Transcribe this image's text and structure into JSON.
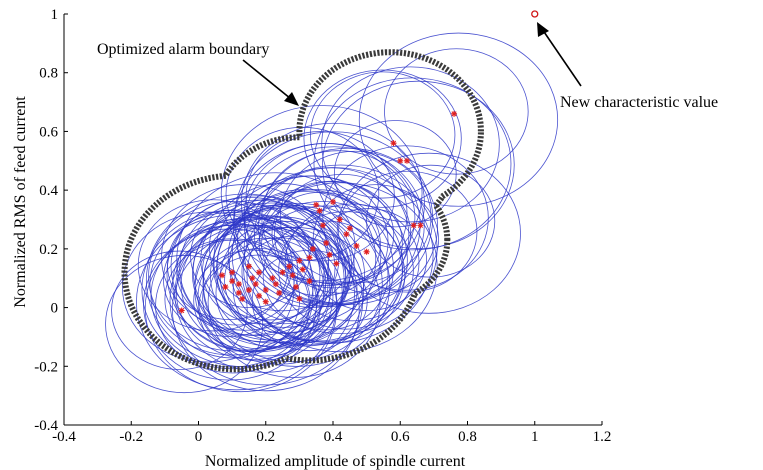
{
  "colors": {
    "circles": "#2b35c8",
    "boundary": "#3a3a3a",
    "points": "#e02020",
    "new_point": "#d01818",
    "axis": "#000000"
  },
  "chart_data": {
    "type": "scatter",
    "title": "",
    "xlabel": "Normalized amplitude of spindle current",
    "ylabel": "Normalized RMS of feed current",
    "xlim": [
      -0.4,
      1.2
    ],
    "ylim": [
      -0.4,
      1.0
    ],
    "xticks": [
      "-0.4",
      "-0.2",
      "0",
      "0.2",
      "0.4",
      "0.6",
      "0.8",
      "1",
      "1.2"
    ],
    "yticks": [
      "-0.4",
      "-0.2",
      "0",
      "0.2",
      "0.4",
      "0.6",
      "0.8",
      "1"
    ],
    "xtick_values": [
      -0.4,
      -0.2,
      0,
      0.2,
      0.4,
      0.6,
      0.8,
      1.0,
      1.2
    ],
    "ytick_values": [
      -0.4,
      -0.2,
      0,
      0.2,
      0.4,
      0.6,
      0.8,
      1.0
    ],
    "grid": false,
    "training_points": {
      "x": [
        -0.05,
        0.07,
        0.08,
        0.1,
        0.1,
        0.12,
        0.12,
        0.13,
        0.15,
        0.15,
        0.16,
        0.17,
        0.18,
        0.18,
        0.2,
        0.2,
        0.22,
        0.23,
        0.24,
        0.25,
        0.27,
        0.28,
        0.29,
        0.3,
        0.3,
        0.31,
        0.33,
        0.33,
        0.34,
        0.35,
        0.36,
        0.37,
        0.38,
        0.39,
        0.4,
        0.41,
        0.42,
        0.44,
        0.45,
        0.47,
        0.5,
        0.58,
        0.6,
        0.62,
        0.64,
        0.66,
        0.76
      ],
      "y": [
        -0.01,
        0.11,
        0.07,
        0.12,
        0.09,
        0.05,
        0.08,
        0.03,
        0.14,
        0.06,
        0.1,
        0.08,
        0.12,
        0.04,
        0.06,
        0.02,
        0.1,
        0.08,
        0.05,
        0.12,
        0.14,
        0.11,
        0.07,
        0.03,
        0.16,
        0.13,
        0.17,
        0.09,
        0.2,
        0.35,
        0.33,
        0.28,
        0.22,
        0.18,
        0.36,
        0.15,
        0.3,
        0.25,
        0.27,
        0.21,
        0.19,
        0.56,
        0.5,
        0.5,
        0.28,
        0.28,
        0.66
      ]
    },
    "new_point": {
      "x": 1.0,
      "y": 1.0
    },
    "annotations": {
      "boundary_label": "Optimized alarm boundary",
      "new_value_label": "New characteristic value"
    }
  }
}
